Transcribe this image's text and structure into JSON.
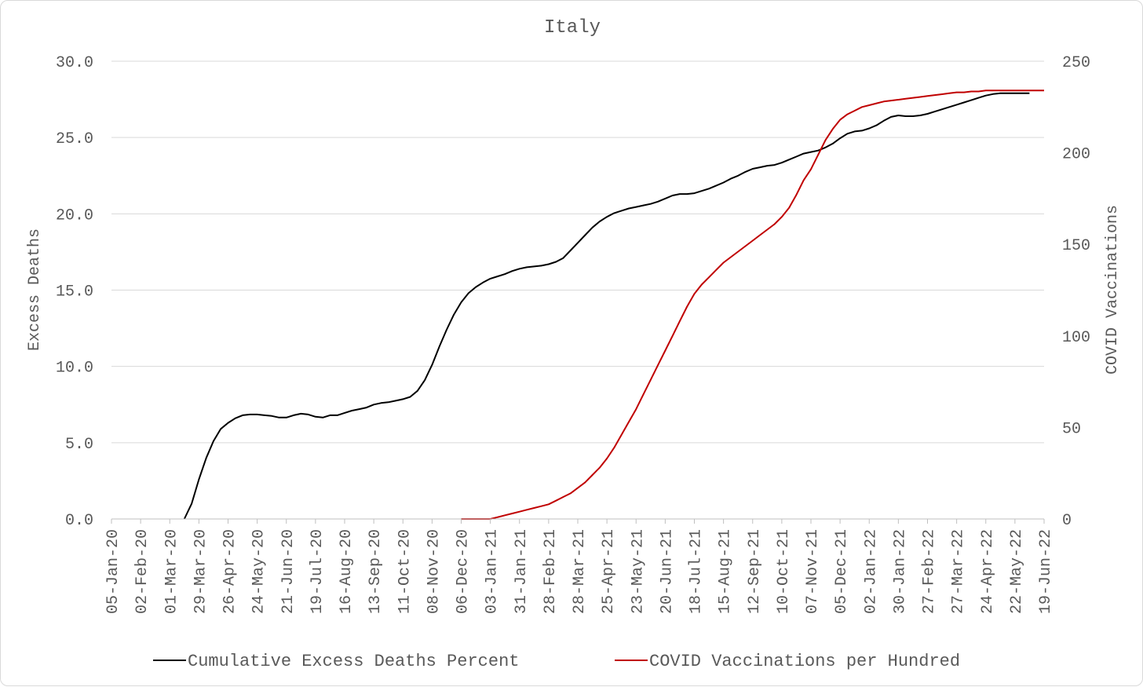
{
  "chart_data": {
    "type": "line",
    "title": "Italy",
    "ylabel": "Excess Deaths",
    "y2label": "COVID Vaccinations",
    "ylim": [
      0,
      30
    ],
    "y2lim": [
      0,
      250
    ],
    "yticks": [
      "0.0",
      "5.0",
      "10.0",
      "15.0",
      "20.0",
      "25.0",
      "30.0"
    ],
    "y2ticks": [
      "0",
      "50",
      "100",
      "150",
      "200",
      "250"
    ],
    "x_tick_labels": [
      "05-Jan-20",
      "02-Feb-20",
      "01-Mar-20",
      "29-Mar-20",
      "26-Apr-20",
      "24-May-20",
      "21-Jun-20",
      "19-Jul-20",
      "16-Aug-20",
      "13-Sep-20",
      "11-Oct-20",
      "08-Nov-20",
      "06-Dec-20",
      "03-Jan-21",
      "31-Jan-21",
      "28-Feb-21",
      "28-Mar-21",
      "25-Apr-21",
      "23-May-21",
      "20-Jun-21",
      "18-Jul-21",
      "15-Aug-21",
      "12-Sep-21",
      "10-Oct-21",
      "07-Nov-21",
      "05-Dec-21",
      "02-Jan-22",
      "30-Jan-22",
      "27-Feb-22",
      "27-Mar-22",
      "24-Apr-22",
      "22-May-22",
      "19-Jun-22"
    ],
    "grid": true,
    "legend_position": "bottom",
    "series": [
      {
        "name": "Cumulative Excess Deaths Percent",
        "axis": "left",
        "color": "#000000",
        "x": [
          "2020-03-15",
          "2020-03-22",
          "2020-03-29",
          "2020-04-05",
          "2020-04-12",
          "2020-04-19",
          "2020-04-26",
          "2020-05-03",
          "2020-05-10",
          "2020-05-17",
          "2020-05-24",
          "2020-05-31",
          "2020-06-07",
          "2020-06-14",
          "2020-06-21",
          "2020-06-28",
          "2020-07-05",
          "2020-07-12",
          "2020-07-19",
          "2020-07-26",
          "2020-08-02",
          "2020-08-09",
          "2020-08-16",
          "2020-08-23",
          "2020-08-30",
          "2020-09-06",
          "2020-09-13",
          "2020-09-20",
          "2020-09-27",
          "2020-10-04",
          "2020-10-11",
          "2020-10-18",
          "2020-10-25",
          "2020-11-01",
          "2020-11-08",
          "2020-11-15",
          "2020-11-22",
          "2020-11-29",
          "2020-12-06",
          "2020-12-13",
          "2020-12-20",
          "2020-12-27",
          "2021-01-03",
          "2021-01-10",
          "2021-01-17",
          "2021-01-24",
          "2021-01-31",
          "2021-02-07",
          "2021-02-14",
          "2021-02-21",
          "2021-02-28",
          "2021-03-07",
          "2021-03-14",
          "2021-03-21",
          "2021-03-28",
          "2021-04-04",
          "2021-04-11",
          "2021-04-18",
          "2021-04-25",
          "2021-05-02",
          "2021-05-09",
          "2021-05-16",
          "2021-05-23",
          "2021-05-30",
          "2021-06-06",
          "2021-06-13",
          "2021-06-20",
          "2021-06-27",
          "2021-07-04",
          "2021-07-11",
          "2021-07-18",
          "2021-07-25",
          "2021-08-01",
          "2021-08-08",
          "2021-08-15",
          "2021-08-22",
          "2021-08-29",
          "2021-09-05",
          "2021-09-12",
          "2021-09-19",
          "2021-09-26",
          "2021-10-03",
          "2021-10-10",
          "2021-10-17",
          "2021-10-24",
          "2021-10-31",
          "2021-11-07",
          "2021-11-14",
          "2021-11-21",
          "2021-11-28",
          "2021-12-05",
          "2021-12-12",
          "2021-12-19",
          "2021-12-26",
          "2022-01-02",
          "2022-01-09",
          "2022-01-16",
          "2022-01-23",
          "2022-01-30",
          "2022-02-06",
          "2022-02-13",
          "2022-02-20",
          "2022-02-27",
          "2022-03-06",
          "2022-03-13",
          "2022-03-20",
          "2022-03-27",
          "2022-04-03",
          "2022-04-10",
          "2022-04-17",
          "2022-04-24",
          "2022-05-01",
          "2022-05-08",
          "2022-05-15",
          "2022-05-22",
          "2022-05-29",
          "2022-06-05"
        ],
        "values": [
          0.0,
          1.0,
          2.6,
          4.0,
          5.1,
          5.9,
          6.3,
          6.6,
          6.8,
          6.85,
          6.85,
          6.8,
          6.75,
          6.65,
          6.65,
          6.8,
          6.9,
          6.85,
          6.7,
          6.65,
          6.8,
          6.8,
          6.95,
          7.1,
          7.2,
          7.3,
          7.5,
          7.6,
          7.65,
          7.75,
          7.85,
          8.0,
          8.4,
          9.1,
          10.1,
          11.3,
          12.4,
          13.4,
          14.2,
          14.8,
          15.2,
          15.5,
          15.75,
          15.9,
          16.05,
          16.25,
          16.4,
          16.5,
          16.55,
          16.6,
          16.7,
          16.85,
          17.1,
          17.6,
          18.1,
          18.6,
          19.1,
          19.5,
          19.8,
          20.05,
          20.2,
          20.35,
          20.45,
          20.55,
          20.65,
          20.8,
          21.0,
          21.2,
          21.3,
          21.3,
          21.35,
          21.5,
          21.65,
          21.85,
          22.05,
          22.3,
          22.5,
          22.75,
          22.95,
          23.05,
          23.15,
          23.2,
          23.35,
          23.55,
          23.75,
          23.95,
          24.05,
          24.15,
          24.35,
          24.6,
          24.95,
          25.25,
          25.4,
          25.45,
          25.6,
          25.8,
          26.1,
          26.35,
          26.45,
          26.4,
          26.4,
          26.45,
          26.55,
          26.7,
          26.85,
          27.0,
          27.15,
          27.3,
          27.45,
          27.6,
          27.75,
          27.85,
          27.9,
          27.9,
          27.9,
          27.9,
          27.9
        ],
        "values_note_trim": 114
      },
      {
        "name": "COVID Vaccinations per Hundred",
        "axis": "right",
        "color": "#c00000",
        "x": [
          "2020-12-06",
          "2020-12-13",
          "2020-12-20",
          "2020-12-27",
          "2021-01-03",
          "2021-01-10",
          "2021-01-17",
          "2021-01-24",
          "2021-01-31",
          "2021-02-07",
          "2021-02-14",
          "2021-02-21",
          "2021-02-28",
          "2021-03-07",
          "2021-03-14",
          "2021-03-21",
          "2021-03-28",
          "2021-04-04",
          "2021-04-11",
          "2021-04-18",
          "2021-04-25",
          "2021-05-02",
          "2021-05-09",
          "2021-05-16",
          "2021-05-23",
          "2021-05-30",
          "2021-06-06",
          "2021-06-13",
          "2021-06-20",
          "2021-06-27",
          "2021-07-04",
          "2021-07-11",
          "2021-07-18",
          "2021-07-25",
          "2021-08-01",
          "2021-08-08",
          "2021-08-15",
          "2021-08-22",
          "2021-08-29",
          "2021-09-05",
          "2021-09-12",
          "2021-09-19",
          "2021-09-26",
          "2021-10-03",
          "2021-10-10",
          "2021-10-17",
          "2021-10-24",
          "2021-10-31",
          "2021-11-07",
          "2021-11-14",
          "2021-11-21",
          "2021-11-28",
          "2021-12-05",
          "2021-12-12",
          "2021-12-19",
          "2021-12-26",
          "2022-01-02",
          "2022-01-09",
          "2022-01-16",
          "2022-01-23",
          "2022-01-30",
          "2022-02-06",
          "2022-02-13",
          "2022-02-20",
          "2022-02-27",
          "2022-03-06",
          "2022-03-13",
          "2022-03-20",
          "2022-03-27",
          "2022-04-03",
          "2022-04-10",
          "2022-04-17",
          "2022-04-24",
          "2022-05-01",
          "2022-05-08",
          "2022-05-15",
          "2022-05-22",
          "2022-05-29",
          "2022-06-05",
          "2022-06-12",
          "2022-06-19"
        ],
        "values": [
          0,
          0,
          0,
          0,
          0,
          1,
          2,
          3,
          4,
          5,
          6,
          7,
          8,
          10,
          12,
          14,
          17,
          20,
          24,
          28,
          33,
          39,
          46,
          53,
          60,
          68,
          76,
          84,
          92,
          100,
          108,
          116,
          123,
          128,
          132,
          136,
          140,
          143,
          146,
          149,
          152,
          155,
          158,
          161,
          165,
          170,
          177,
          185,
          191,
          199,
          207,
          213,
          218,
          221,
          223,
          225,
          226,
          227,
          228,
          228.5,
          229,
          229.5,
          230,
          230.5,
          231,
          231.5,
          232,
          232.5,
          233,
          233,
          233.5,
          233.5,
          234,
          234,
          234,
          234,
          234,
          234,
          234,
          234,
          234
        ],
        "values_note_trim": 81
      }
    ]
  }
}
